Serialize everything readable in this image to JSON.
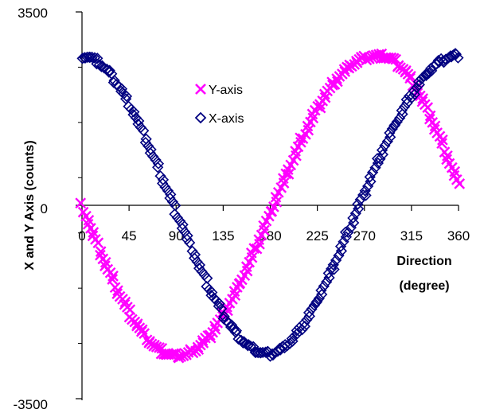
{
  "chart_data": {
    "type": "scatter",
    "title": "",
    "ylabel": "X and Y Axis (counts)",
    "xlabel": [
      "Direction",
      "(degree)"
    ],
    "xlim": [
      0,
      360
    ],
    "ylim": [
      -3500,
      3500
    ],
    "x_ticks": [
      "0",
      "45",
      "90",
      "135",
      "180",
      "225",
      "270",
      "315",
      "360"
    ],
    "x_tick_values": [
      0,
      45,
      90,
      135,
      180,
      225,
      270,
      315,
      360
    ],
    "y_tick_labels": [
      "3500",
      "0",
      "-3500"
    ],
    "y_tick_values": [
      3500,
      0,
      -3500
    ],
    "y_minor_tick_values": [
      2500,
      1500,
      500,
      -500,
      -1500,
      -2500
    ],
    "grid": false,
    "legend_position": "upper-center",
    "series": [
      {
        "name": "Y-axis",
        "marker": "x-cross",
        "color": "#FF00FF",
        "points": [
          [
            0,
            0
          ],
          [
            5,
            -250
          ],
          [
            10,
            -500
          ],
          [
            15,
            -720
          ],
          [
            20,
            -950
          ],
          [
            25,
            -1170
          ],
          [
            30,
            -1380
          ],
          [
            35,
            -1580
          ],
          [
            40,
            -1760
          ],
          [
            45,
            -1930
          ],
          [
            50,
            -2090
          ],
          [
            55,
            -2230
          ],
          [
            60,
            -2360
          ],
          [
            65,
            -2470
          ],
          [
            70,
            -2560
          ],
          [
            75,
            -2630
          ],
          [
            80,
            -2680
          ],
          [
            85,
            -2710
          ],
          [
            90,
            -2720
          ],
          [
            95,
            -2720
          ],
          [
            100,
            -2700
          ],
          [
            105,
            -2650
          ],
          [
            110,
            -2590
          ],
          [
            115,
            -2500
          ],
          [
            120,
            -2400
          ],
          [
            125,
            -2280
          ],
          [
            130,
            -2140
          ],
          [
            135,
            -1990
          ],
          [
            140,
            -1820
          ],
          [
            145,
            -1640
          ],
          [
            150,
            -1450
          ],
          [
            155,
            -1250
          ],
          [
            160,
            -1040
          ],
          [
            165,
            -820
          ],
          [
            170,
            -600
          ],
          [
            175,
            -380
          ],
          [
            180,
            -150
          ],
          [
            185,
            80
          ],
          [
            190,
            310
          ],
          [
            195,
            530
          ],
          [
            200,
            750
          ],
          [
            205,
            970
          ],
          [
            210,
            1180
          ],
          [
            215,
            1380
          ],
          [
            220,
            1570
          ],
          [
            225,
            1750
          ],
          [
            230,
            1910
          ],
          [
            235,
            2060
          ],
          [
            240,
            2190
          ],
          [
            245,
            2310
          ],
          [
            250,
            2410
          ],
          [
            255,
            2500
          ],
          [
            260,
            2570
          ],
          [
            265,
            2630
          ],
          [
            270,
            2660
          ],
          [
            275,
            2690
          ],
          [
            280,
            2700
          ],
          [
            285,
            2700
          ],
          [
            290,
            2690
          ],
          [
            295,
            2660
          ],
          [
            300,
            2600
          ],
          [
            305,
            2510
          ],
          [
            310,
            2400
          ],
          [
            315,
            2260
          ],
          [
            320,
            2100
          ],
          [
            325,
            1920
          ],
          [
            330,
            1730
          ],
          [
            335,
            1520
          ],
          [
            340,
            1300
          ],
          [
            345,
            1080
          ],
          [
            350,
            850
          ],
          [
            355,
            600
          ],
          [
            360,
            350
          ]
        ]
      },
      {
        "name": "X-axis",
        "marker": "open-diamond",
        "color": "#000080",
        "points": [
          [
            0,
            2700
          ],
          [
            5,
            2690
          ],
          [
            10,
            2660
          ],
          [
            15,
            2600
          ],
          [
            20,
            2520
          ],
          [
            25,
            2420
          ],
          [
            30,
            2300
          ],
          [
            35,
            2160
          ],
          [
            40,
            2000
          ],
          [
            45,
            1830
          ],
          [
            50,
            1650
          ],
          [
            55,
            1450
          ],
          [
            60,
            1240
          ],
          [
            65,
            1020
          ],
          [
            70,
            800
          ],
          [
            75,
            570
          ],
          [
            80,
            340
          ],
          [
            85,
            110
          ],
          [
            90,
            -120
          ],
          [
            95,
            -340
          ],
          [
            100,
            -570
          ],
          [
            105,
            -790
          ],
          [
            110,
            -1010
          ],
          [
            115,
            -1220
          ],
          [
            120,
            -1430
          ],
          [
            125,
            -1620
          ],
          [
            130,
            -1800
          ],
          [
            135,
            -1970
          ],
          [
            140,
            -2120
          ],
          [
            145,
            -2260
          ],
          [
            150,
            -2380
          ],
          [
            155,
            -2480
          ],
          [
            160,
            -2560
          ],
          [
            165,
            -2620
          ],
          [
            170,
            -2660
          ],
          [
            175,
            -2680
          ],
          [
            180,
            -2690
          ],
          [
            185,
            -2660
          ],
          [
            190,
            -2610
          ],
          [
            195,
            -2540
          ],
          [
            200,
            -2450
          ],
          [
            205,
            -2340
          ],
          [
            210,
            -2210
          ],
          [
            215,
            -2060
          ],
          [
            220,
            -1900
          ],
          [
            225,
            -1720
          ],
          [
            230,
            -1530
          ],
          [
            235,
            -1330
          ],
          [
            240,
            -1120
          ],
          [
            245,
            -900
          ],
          [
            250,
            -680
          ],
          [
            255,
            -450
          ],
          [
            260,
            -220
          ],
          [
            265,
            0
          ],
          [
            270,
            220
          ],
          [
            275,
            440
          ],
          [
            280,
            660
          ],
          [
            285,
            880
          ],
          [
            290,
            1090
          ],
          [
            295,
            1290
          ],
          [
            300,
            1480
          ],
          [
            305,
            1660
          ],
          [
            310,
            1830
          ],
          [
            315,
            1990
          ],
          [
            320,
            2140
          ],
          [
            325,
            2270
          ],
          [
            330,
            2390
          ],
          [
            335,
            2490
          ],
          [
            340,
            2570
          ],
          [
            345,
            2630
          ],
          [
            350,
            2680
          ],
          [
            355,
            2700
          ],
          [
            360,
            2710
          ]
        ]
      }
    ]
  }
}
